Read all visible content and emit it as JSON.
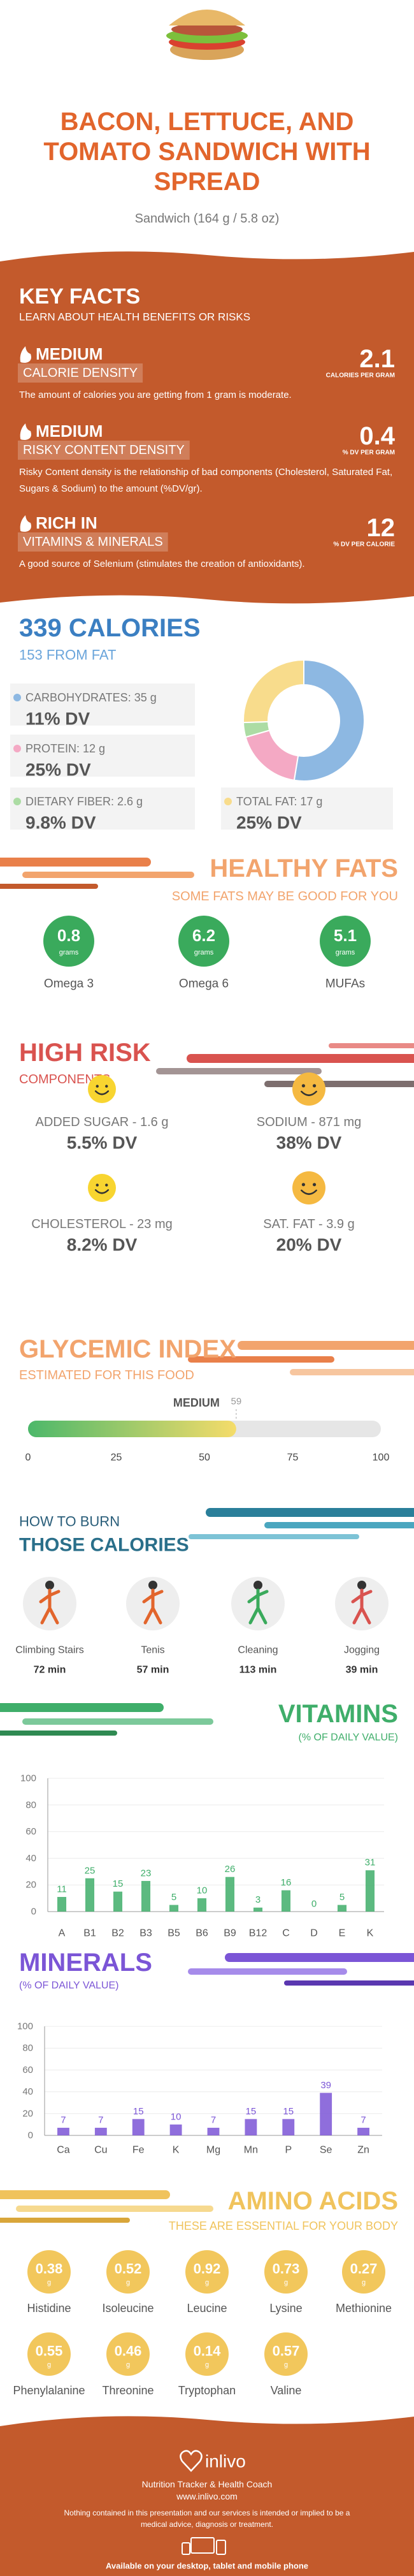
{
  "header": {
    "title": "BACON, LETTUCE, AND TOMATO SANDWICH WITH SPREAD",
    "subtitle": "Sandwich (164 g / 5.8 oz)"
  },
  "key_facts": {
    "title": "KEY FACTS",
    "subtitle": "LEARN ABOUT HEALTH BENEFITS OR RISKS",
    "items": [
      {
        "level": "MEDIUM",
        "label": "CALORIE DENSITY",
        "value": 2.1,
        "unit": "CALORIES PER GRAM",
        "description": "The amount of calories you are getting from 1 gram is moderate."
      },
      {
        "level": "MEDIUM",
        "label": "RISKY CONTENT DENSITY",
        "value": 0.4,
        "unit": "% DV PER GRAM",
        "description": "Risky Content density is the relationship of bad components (Cholesterol, Saturated Fat, Sugars & Sodium) to the amount (%DV/gr)."
      },
      {
        "level": "RICH IN",
        "label": "VITAMINS & MINERALS",
        "value": 12,
        "unit": "% DV PER CALORIE",
        "description": "A good source of Selenium (stimulates the creation of antioxidants)."
      }
    ]
  },
  "calories": {
    "title": "339 CALORIES",
    "subtitle": "153 FROM FAT",
    "nutrients": [
      {
        "label": "CARBOHYDRATES: 35 g",
        "dv": "11% DV"
      },
      {
        "label": "PROTEIN: 12 g",
        "dv": "25% DV"
      },
      {
        "label": "DIETARY FIBER: 2.6 g",
        "dv": "9.8% DV"
      },
      {
        "label": "TOTAL FAT: 17 g",
        "dv": "25% DV"
      }
    ],
    "donut": {
      "values": [
        35,
        12,
        2.6,
        17
      ],
      "colors": [
        "#8db8e2",
        "#f4a9c4",
        "#acdca4",
        "#f8dc8c"
      ]
    }
  },
  "healthy_fats": {
    "title": "HEALTHY FATS",
    "subtitle": "SOME FATS MAY BE GOOD FOR YOU",
    "items": [
      {
        "value": 0.8,
        "unit": "grams",
        "name": "Omega 3"
      },
      {
        "value": 6.2,
        "unit": "grams",
        "name": "Omega 6"
      },
      {
        "value": 5.1,
        "unit": "grams",
        "name": "MUFAs"
      }
    ]
  },
  "high_risk": {
    "title": "HIGH RISK",
    "subtitle": "COMPONENTS",
    "items": [
      {
        "label": "ADDED SUGAR - 1.6 g",
        "dv": "5.5% DV"
      },
      {
        "label": "SODIUM - 871 mg",
        "dv": "38% DV"
      },
      {
        "label": "CHOLESTEROL - 23 mg",
        "dv": "8.2% DV"
      },
      {
        "label": "SAT. FAT - 3.9 g",
        "dv": "20% DV"
      }
    ]
  },
  "glycemic_index": {
    "title": "GLYCEMIC INDEX",
    "subtitle": "ESTIMATED FOR THIS FOOD",
    "level": "MEDIUM",
    "value": 59,
    "range": [
      0,
      100
    ],
    "ticks": [
      0,
      25,
      50,
      75,
      100
    ]
  },
  "burn": {
    "title": "HOW TO BURN",
    "subtitle": "THOSE CALORIES",
    "activities": [
      {
        "name": "Climbing Stairs",
        "time": "72 min"
      },
      {
        "name": "Tenis",
        "time": "57 min"
      },
      {
        "name": "Cleaning",
        "time": "113 min"
      },
      {
        "name": "Jogging",
        "time": "39 min"
      }
    ]
  },
  "chart_data": [
    {
      "type": "bar",
      "title": "VITAMINS",
      "subtitle": "(% OF DAILY VALUE)",
      "categories": [
        "A",
        "B1",
        "B2",
        "B3",
        "B5",
        "B6",
        "B9",
        "B12",
        "C",
        "D",
        "E",
        "K"
      ],
      "values": [
        11,
        25,
        15,
        23,
        5,
        10,
        26,
        3,
        16,
        0,
        5,
        31
      ],
      "color": "#3fae6a",
      "ylim": [
        0,
        100
      ],
      "yticks": [
        0,
        20,
        40,
        60,
        80,
        100
      ],
      "grid": true
    },
    {
      "type": "bar",
      "title": "MINERALS",
      "subtitle": "(% OF DAILY VALUE)",
      "categories": [
        "Ca",
        "Cu",
        "Fe",
        "K",
        "Mg",
        "Mn",
        "P",
        "Se",
        "Zn"
      ],
      "values": [
        7,
        7,
        15,
        10,
        7,
        15,
        15,
        39,
        7
      ],
      "color": "#7b55d6",
      "ylim": [
        0,
        100
      ],
      "yticks": [
        0,
        20,
        40,
        60,
        80,
        100
      ],
      "grid": true
    }
  ],
  "amino_acids": {
    "title": "AMINO ACIDS",
    "subtitle": "THESE ARE ESSENTIAL FOR YOUR BODY",
    "items": [
      {
        "value": 0.38,
        "unit": "g",
        "name": "Histidine"
      },
      {
        "value": 0.52,
        "unit": "g",
        "name": "Isoleucine"
      },
      {
        "value": 0.92,
        "unit": "g",
        "name": "Leucine"
      },
      {
        "value": 0.73,
        "unit": "g",
        "name": "Lysine"
      },
      {
        "value": 0.27,
        "unit": "g",
        "name": "Methionine"
      },
      {
        "value": 0.55,
        "unit": "g",
        "name": "Phenylalanine"
      },
      {
        "value": 0.46,
        "unit": "g",
        "name": "Threonine"
      },
      {
        "value": 0.14,
        "unit": "g",
        "name": "Tryptophan"
      },
      {
        "value": 0.57,
        "unit": "g",
        "name": "Valine"
      }
    ]
  },
  "footer": {
    "brand": "inlivo",
    "tagline": "Nutrition Tracker & Health Coach",
    "url": "www.inlivo.com",
    "disclaimer": "Nothing contained in this presentation and our services is intended or implied to be a medical advice, diagnosis or treatment.",
    "availability": "Available on your desktop, tablet and mobile phone"
  }
}
